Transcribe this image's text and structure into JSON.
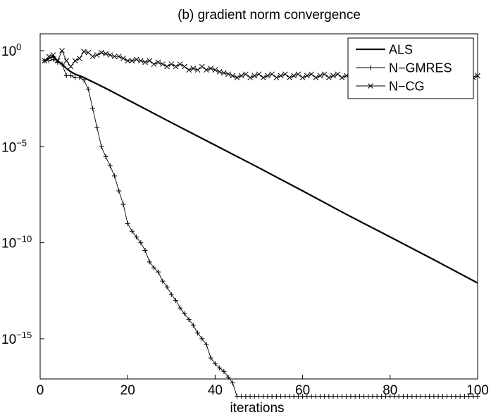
{
  "chart_data": {
    "type": "line",
    "title": "(b) gradient norm convergence",
    "xlabel": "iterations",
    "ylabel": "",
    "xlim": [
      0,
      100
    ],
    "ylim_log10": [
      -17,
      2
    ],
    "yscale": "log",
    "grid": false,
    "legend_position": "top-right",
    "x_ticks": [
      0,
      20,
      40,
      60,
      80,
      100
    ],
    "y_ticks": [
      {
        "base": "10",
        "exp": "0",
        "log10": 0
      },
      {
        "base": "10",
        "exp": "−5",
        "log10": -5
      },
      {
        "base": "10",
        "exp": "−10",
        "log10": -10
      },
      {
        "base": "10",
        "exp": "−15",
        "log10": -15
      }
    ],
    "series": [
      {
        "name": "ALS",
        "marker": "none",
        "line_width": "thick",
        "x": [
          1,
          2,
          3,
          4,
          5,
          6,
          7,
          8,
          9,
          10,
          15,
          20,
          30,
          40,
          50,
          60,
          70,
          80,
          90,
          100
        ],
        "y": [
          0.3,
          0.4,
          0.5,
          0.3,
          0.2,
          0.12,
          0.08,
          0.06,
          0.05,
          0.04,
          0.011,
          0.0028,
          0.00018,
          1.2e-05,
          8e-07,
          5e-08,
          3e-09,
          2e-10,
          1.3e-11,
          8e-13
        ]
      },
      {
        "name": "N−GMRES",
        "marker": "+",
        "x": [
          1,
          2,
          3,
          4,
          5,
          6,
          7,
          8,
          9,
          10,
          11,
          12,
          13,
          14,
          15,
          16,
          17,
          18,
          19,
          20,
          21,
          22,
          23,
          24,
          25,
          26,
          27,
          28,
          29,
          30,
          31,
          32,
          33,
          34,
          35,
          36,
          37,
          38,
          39,
          40,
          41,
          42,
          43,
          44,
          45,
          46,
          47,
          48,
          49,
          50,
          51,
          52,
          53,
          54,
          55,
          56,
          57,
          58,
          59,
          60,
          61,
          62,
          63,
          64,
          65,
          66,
          67,
          68,
          69,
          70,
          71,
          72,
          73,
          74,
          75,
          76,
          77,
          78,
          79,
          80,
          81,
          82,
          83,
          84,
          85,
          86,
          87,
          88,
          89,
          90,
          91,
          92,
          93,
          94,
          95,
          96,
          97,
          98,
          99,
          100
        ],
        "y": [
          0.3,
          0.3,
          0.35,
          0.25,
          0.2,
          0.05,
          0.05,
          0.04,
          0.04,
          0.03,
          0.01,
          0.001,
          0.0001,
          1e-05,
          3e-06,
          1e-06,
          3e-07,
          5e-08,
          1e-08,
          1e-09,
          4e-10,
          2e-10,
          1e-10,
          4e-11,
          1e-11,
          5e-12,
          3e-12,
          1e-12,
          5e-13,
          2e-13,
          1e-13,
          4e-14,
          2e-14,
          1e-14,
          5e-15,
          2e-15,
          1e-15,
          5e-16,
          1e-16,
          5e-17,
          3e-17,
          2e-17,
          1e-17,
          5e-18,
          1e-18,
          1e-18,
          1e-18,
          1e-18,
          1e-18,
          1e-18,
          1e-18,
          1e-18,
          1e-18,
          1e-18,
          1e-18,
          1e-18,
          1e-18,
          1e-18,
          1e-18,
          1e-18,
          1e-18,
          1e-18,
          1e-18,
          1e-18,
          1e-18,
          1e-18,
          1e-18,
          1e-18,
          1e-18,
          1e-18,
          1e-18,
          1e-18,
          1e-18,
          1e-18,
          1e-18,
          1e-18,
          1e-18,
          1e-18,
          1e-18,
          1e-18,
          1e-18,
          1e-18,
          1e-18,
          1e-18,
          1e-18,
          1e-18,
          1e-18,
          1e-18,
          1e-18,
          1e-18,
          1e-18,
          1e-18,
          1e-18,
          1e-18,
          1e-18,
          1e-18,
          1e-18,
          1e-18,
          1e-18,
          1e-18
        ]
      },
      {
        "name": "N−CG",
        "marker": "x",
        "x": [
          1,
          2,
          3,
          4,
          5,
          6,
          7,
          8,
          9,
          10,
          11,
          12,
          13,
          14,
          15,
          16,
          17,
          18,
          19,
          20,
          21,
          22,
          23,
          24,
          25,
          26,
          27,
          28,
          29,
          30,
          31,
          32,
          33,
          34,
          35,
          36,
          37,
          38,
          39,
          40,
          41,
          42,
          43,
          44,
          45,
          46,
          47,
          48,
          49,
          50,
          51,
          52,
          53,
          54,
          55,
          56,
          57,
          58,
          59,
          60,
          61,
          62,
          63,
          64,
          65,
          66,
          67,
          68,
          69,
          70,
          71,
          72,
          73,
          74,
          75,
          76,
          77,
          78,
          79,
          80,
          81,
          82,
          83,
          84,
          85,
          86,
          87,
          88,
          89,
          90,
          91,
          92,
          93,
          94,
          95,
          96,
          97,
          98,
          99,
          100
        ],
        "y": [
          0.3,
          0.5,
          0.6,
          0.3,
          1.0,
          0.3,
          0.15,
          0.3,
          0.4,
          0.9,
          0.8,
          0.5,
          0.6,
          0.8,
          0.7,
          0.6,
          0.5,
          0.5,
          0.4,
          0.3,
          0.3,
          0.35,
          0.3,
          0.25,
          0.3,
          0.2,
          0.25,
          0.2,
          0.15,
          0.2,
          0.15,
          0.2,
          0.15,
          0.1,
          0.12,
          0.1,
          0.15,
          0.1,
          0.12,
          0.1,
          0.08,
          0.07,
          0.06,
          0.05,
          0.04,
          0.05,
          0.06,
          0.04,
          0.05,
          0.06,
          0.04,
          0.05,
          0.06,
          0.04,
          0.05,
          0.06,
          0.04,
          0.05,
          0.06,
          0.04,
          0.05,
          0.06,
          0.04,
          0.05,
          0.06,
          0.04,
          0.05,
          0.06,
          0.04,
          0.05,
          0.06,
          0.04,
          0.05,
          0.06,
          0.04,
          0.05,
          0.06,
          0.04,
          0.05,
          0.06,
          0.04,
          0.05,
          0.06,
          0.04,
          0.05,
          0.06,
          0.04,
          0.05,
          0.06,
          0.04,
          0.05,
          0.06,
          0.04,
          0.05,
          0.06,
          0.04,
          0.05,
          0.06,
          0.04,
          0.05
        ]
      }
    ]
  }
}
